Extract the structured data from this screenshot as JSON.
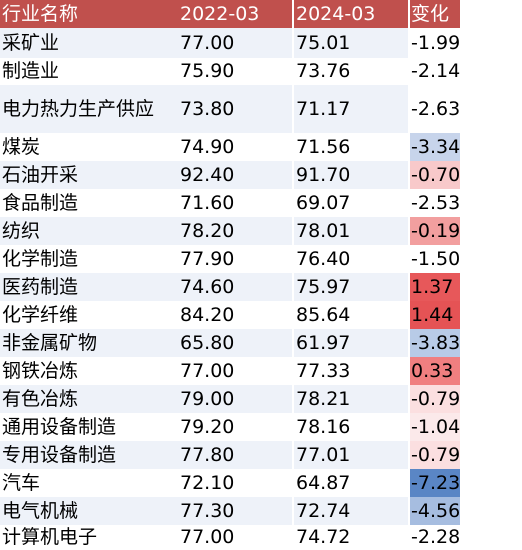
{
  "headers": [
    "行业名称",
    "2022-03",
    "2024-03",
    "变化"
  ],
  "rows": [
    {
      "name": "采矿业",
      "v2022": "77.00",
      "v2024": "75.01",
      "change": "-1.99"
    },
    {
      "name": "制造业",
      "v2022": "75.90",
      "v2024": "73.76",
      "change": "-2.14"
    },
    {
      "name": "电力热力生产供应",
      "v2022": "73.80",
      "v2024": "71.17",
      "change": "-2.63"
    },
    {
      "name": "煤炭",
      "v2022": "74.90",
      "v2024": "71.56",
      "change": "-3.34"
    },
    {
      "name": "石油开采",
      "v2022": "92.40",
      "v2024": "91.70",
      "change": "-0.70"
    },
    {
      "name": "食品制造",
      "v2022": "71.60",
      "v2024": "69.07",
      "change": "-2.53"
    },
    {
      "name": "纺织",
      "v2022": "78.20",
      "v2024": "78.01",
      "change": "-0.19"
    },
    {
      "name": "化学制造",
      "v2022": "77.90",
      "v2024": "76.40",
      "change": "-1.50"
    },
    {
      "name": "医药制造",
      "v2022": "74.60",
      "v2024": "75.97",
      "change": "1.37"
    },
    {
      "name": "化学纤维",
      "v2022": "84.20",
      "v2024": "85.64",
      "change": "1.44"
    },
    {
      "name": "非金属矿物",
      "v2022": "65.80",
      "v2024": "61.97",
      "change": "-3.83"
    },
    {
      "name": "钢铁冶炼",
      "v2022": "77.00",
      "v2024": "77.33",
      "change": "0.33"
    },
    {
      "name": "有色冶炼",
      "v2022": "79.00",
      "v2024": "78.21",
      "change": "-0.79"
    },
    {
      "name": "通用设备制造",
      "v2022": "79.20",
      "v2024": "78.16",
      "change": "-1.04"
    },
    {
      "name": "专用设备制造",
      "v2022": "77.80",
      "v2024": "77.01",
      "change": "-0.79"
    },
    {
      "name": "汽车",
      "v2022": "72.10",
      "v2024": "64.87",
      "change": "-7.23"
    },
    {
      "name": "电气机械",
      "v2022": "77.30",
      "v2024": "72.74",
      "change": "-4.56"
    },
    {
      "name": "计算机电子",
      "v2022": "77.00",
      "v2024": "74.72",
      "change": "-2.28"
    }
  ],
  "change_colors": [
    "#ffffff",
    "#ffffff",
    "#ffffff",
    "#c7d4eb",
    "#f8c9ca",
    "#ffffff",
    "#f29f9f",
    "#ffffff",
    "#e7585a",
    "#e55355",
    "#b8cbe7",
    "#f07f80",
    "#fbdfe0",
    "#fbe9ea",
    "#fbdfe0",
    "#5a86c5",
    "#a6bde0",
    "#ffffff"
  ],
  "header_color": "#c0504d",
  "stripe_color": "#eef2f9"
}
